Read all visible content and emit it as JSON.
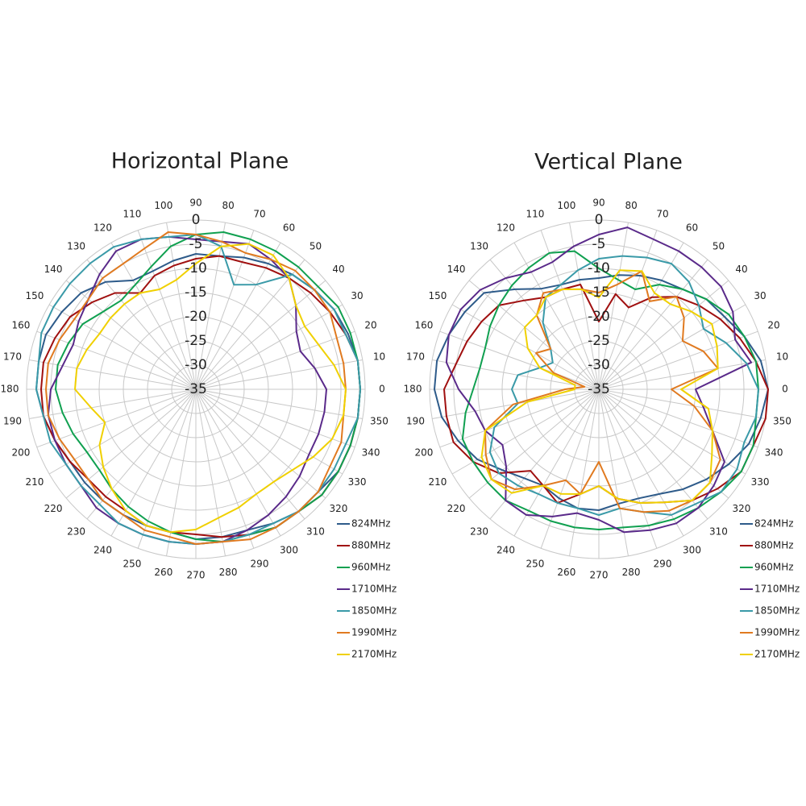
{
  "chart_data": [
    {
      "type": "polar",
      "title": "Horizontal Plane",
      "theta": [
        0,
        10,
        20,
        30,
        40,
        50,
        60,
        70,
        80,
        90,
        100,
        110,
        120,
        130,
        140,
        150,
        160,
        170,
        180,
        190,
        200,
        210,
        220,
        230,
        240,
        250,
        260,
        270,
        280,
        290,
        300,
        310,
        320,
        330,
        340,
        350
      ],
      "rlim": [
        -35,
        0
      ],
      "rticks": [
        0,
        -5,
        -10,
        -15,
        -20,
        -25,
        -30,
        -35
      ],
      "grid": true,
      "series": [
        {
          "name": "824MHz",
          "color": "#2e5b8a",
          "values": [
            -1,
            -1,
            -1.5,
            -2,
            -3,
            -4,
            -5,
            -6,
            -7,
            -7,
            -8,
            -9,
            -9,
            -6,
            -4,
            -3,
            -2,
            -2,
            -2,
            -3,
            -4,
            -5,
            -5,
            -5,
            -5,
            -5,
            -5,
            -4,
            -4,
            -4,
            -3,
            -2,
            -2,
            -1,
            -1,
            -1
          ]
        },
        {
          "name": "880MHz",
          "color": "#a01010",
          "values": [
            -1,
            -1,
            -2,
            -3,
            -4,
            -5,
            -6,
            -7,
            -7,
            -8,
            -9,
            -10,
            -12,
            -9,
            -7,
            -5,
            -4,
            -3,
            -3,
            -3,
            -4,
            -5,
            -6,
            -6,
            -6,
            -5,
            -5,
            -5,
            -4,
            -3,
            -2,
            -2,
            -1,
            -1,
            -1,
            -1
          ]
        },
        {
          "name": "960MHz",
          "color": "#10a050",
          "values": [
            -1,
            -1,
            -1,
            -1,
            -2,
            -2,
            -2,
            -2,
            -2,
            -3,
            -5,
            -8,
            -10,
            -11,
            -10,
            -8,
            -7,
            -6,
            -6,
            -7,
            -8,
            -9,
            -9,
            -8,
            -7,
            -6,
            -5,
            -4,
            -3,
            -3,
            -2,
            -2,
            -1,
            -1,
            -1,
            -1
          ]
        },
        {
          "name": "1710MHz",
          "color": "#5a2a8a",
          "values": [
            -8,
            -10,
            -12,
            -11,
            -8,
            -5,
            -4,
            -3,
            -4,
            -4,
            -3,
            -2,
            -2,
            -4,
            -6,
            -7,
            -8,
            -7,
            -5,
            -4,
            -4,
            -4,
            -4,
            -3,
            -3,
            -3,
            -3,
            -3,
            -3,
            -4,
            -5,
            -6,
            -7,
            -8,
            -8,
            -8
          ]
        },
        {
          "name": "1850MHz",
          "color": "#3a9aa8",
          "values": [
            -1,
            -1,
            -2,
            -2,
            -3,
            -4,
            -10,
            -12,
            -5,
            -3,
            -3,
            -2,
            -1,
            -1,
            -1,
            -1,
            -1,
            -2,
            -2,
            -3,
            -3,
            -4,
            -4,
            -4,
            -3,
            -3,
            -3,
            -3,
            -3,
            -3,
            -3,
            -2,
            -2,
            -2,
            -2,
            -1
          ]
        },
        {
          "name": "1990MHz",
          "color": "#e07a20",
          "values": [
            -4,
            -4,
            -4,
            -3,
            -3,
            -3,
            -4,
            -5,
            -4,
            -3,
            -2,
            -4,
            -5,
            -5,
            -6,
            -6,
            -5,
            -4,
            -4,
            -4,
            -5,
            -6,
            -6,
            -5,
            -5,
            -4,
            -4,
            -3,
            -3,
            -2,
            -2,
            -2,
            -2,
            -3,
            -3,
            -4
          ]
        },
        {
          "name": "2170MHz",
          "color": "#f0d000",
          "values": [
            -4,
            -6,
            -8,
            -9,
            -8,
            -5,
            -3,
            -3,
            -5,
            -9,
            -12,
            -13,
            -12,
            -12,
            -12,
            -12,
            -11,
            -10,
            -10,
            -13,
            -15,
            -12,
            -10,
            -8,
            -6,
            -5,
            -5,
            -6,
            -8,
            -9,
            -10,
            -10,
            -9,
            -7,
            -5,
            -4
          ]
        }
      ]
    },
    {
      "type": "polar",
      "title": "Vertical Plane",
      "theta": [
        0,
        10,
        20,
        30,
        40,
        50,
        60,
        70,
        80,
        90,
        100,
        110,
        120,
        130,
        140,
        150,
        160,
        170,
        180,
        190,
        200,
        210,
        220,
        230,
        240,
        250,
        260,
        270,
        280,
        290,
        300,
        310,
        320,
        330,
        340,
        350
      ],
      "rlim": [
        -35,
        0
      ],
      "rticks": [
        0,
        -5,
        -10,
        -15,
        -20,
        -25,
        -30,
        -35
      ],
      "grid": true,
      "series": [
        {
          "name": "824MHz",
          "color": "#2e5b8a",
          "values": [
            0,
            -1,
            -3,
            -5,
            -6,
            -8,
            -9,
            -10,
            -11,
            -12,
            -12,
            -12,
            -11,
            -8,
            -4,
            -3,
            -2,
            -1,
            -1,
            -2,
            -4,
            -6,
            -9,
            -11,
            -12,
            -11,
            -10,
            -10,
            -11,
            -11,
            -10,
            -8,
            -6,
            -4,
            -2,
            -1
          ]
        },
        {
          "name": "880MHz",
          "color": "#a01010",
          "values": [
            0,
            -2,
            -4,
            -6,
            -8,
            -10,
            -13,
            -17,
            -15,
            -21,
            -13,
            -13,
            -13,
            -11,
            -8,
            -7,
            -6,
            -5,
            -3,
            -3,
            -3,
            -5,
            -8,
            -13,
            -12,
            -10,
            -13,
            -15,
            -12,
            -10,
            -8,
            -5,
            -3,
            -1,
            -1,
            0
          ]
        },
        {
          "name": "960MHz",
          "color": "#10a050",
          "values": [
            -2,
            -2,
            -3,
            -4,
            -6,
            -8,
            -10,
            -13,
            -12,
            -10,
            -6,
            -5,
            -6,
            -7,
            -8,
            -9,
            -10,
            -10,
            -9,
            -7,
            -5,
            -5,
            -5,
            -5,
            -6,
            -6,
            -6,
            -6,
            -6,
            -5,
            -4,
            -3,
            -2,
            -1,
            -1,
            -2
          ]
        },
        {
          "name": "1710MHz",
          "color": "#5a2a8a",
          "values": [
            -15,
            -3,
            -5,
            -3,
            -2,
            -2,
            -2,
            -2,
            -1,
            -3,
            -5,
            -7,
            -7,
            -5,
            -3,
            -2,
            -2,
            -3,
            -6,
            -9,
            -10,
            -12,
            -10,
            -5,
            -5,
            -7,
            -9,
            -8,
            -5,
            -4,
            -3,
            -3,
            -4,
            -5,
            -10,
            -13
          ]
        },
        {
          "name": "1850MHz",
          "color": "#3a9aa8",
          "values": [
            -2,
            -4,
            -7,
            -10,
            -8,
            -6,
            -5,
            -6,
            -7,
            -8,
            -10,
            -12,
            -13,
            -17,
            -22,
            -24,
            -22,
            -18,
            -17,
            -18,
            -12,
            -9,
            -8,
            -9,
            -10,
            -10,
            -10,
            -9,
            -10,
            -8,
            -5,
            -4,
            -2,
            -2,
            -3,
            -2
          ]
        },
        {
          "name": "1990MHz",
          "color": "#e07a20",
          "values": [
            -20,
            -10,
            -12,
            -15,
            -12,
            -10,
            -14,
            -9,
            -13,
            -15,
            -14,
            -13,
            -12,
            -15,
            -22,
            -20,
            -25,
            -32,
            -28,
            -17,
            -10,
            -8,
            -6,
            -8,
            -12,
            -15,
            -13,
            -20,
            -10,
            -8,
            -6,
            -5,
            -5,
            -6,
            -10,
            -15
          ]
        },
        {
          "name": "2170MHz",
          "color": "#f0d000",
          "values": [
            -18,
            -10,
            -9,
            -8,
            -10,
            -12,
            -12,
            -9,
            -10,
            -16,
            -14,
            -13,
            -13,
            -15,
            -15,
            -18,
            -22,
            -30,
            -30,
            -20,
            -10,
            -7,
            -6,
            -7,
            -12,
            -12,
            -13,
            -15,
            -12,
            -10,
            -8,
            -5,
            -5,
            -8,
            -10,
            -12
          ]
        }
      ]
    }
  ]
}
